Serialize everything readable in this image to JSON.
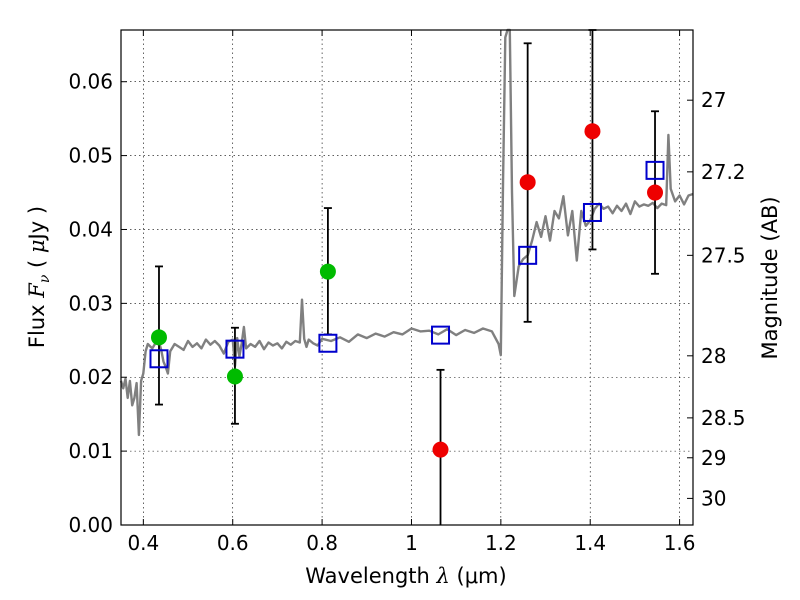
{
  "chart_data": {
    "type": "scatter",
    "title": "",
    "xlabel": "Wavelength  λ (μm)",
    "xlabel_parts": {
      "prefix": "Wavelength  ",
      "symbol": "λ",
      "unit": " (μm)"
    },
    "ylabel": "Flux  Fν  ( μJy )",
    "ylabel_parts": {
      "prefix": "Flux  ",
      "symbol": "F",
      "subscript": "ν",
      "open": "  ( ",
      "mu": "μ",
      "unit": "Jy )"
    },
    "y2label": "Magnitude (AB)",
    "xlim": [
      0.35,
      1.63
    ],
    "ylim": [
      0.0,
      0.067
    ],
    "grid": true,
    "x_ticks": [
      {
        "value": 0.4,
        "label": "0.4"
      },
      {
        "value": 0.6,
        "label": "0.6"
      },
      {
        "value": 0.8,
        "label": "0.8"
      },
      {
        "value": 1.0,
        "label": "1"
      },
      {
        "value": 1.2,
        "label": "1.2"
      },
      {
        "value": 1.4,
        "label": "1.4"
      },
      {
        "value": 1.6,
        "label": "1.6"
      }
    ],
    "y_ticks": [
      {
        "value": 0.0,
        "label": "0.00"
      },
      {
        "value": 0.01,
        "label": "0.01"
      },
      {
        "value": 0.02,
        "label": "0.02"
      },
      {
        "value": 0.03,
        "label": "0.03"
      },
      {
        "value": 0.04,
        "label": "0.04"
      },
      {
        "value": 0.05,
        "label": "0.05"
      },
      {
        "value": 0.06,
        "label": "0.06"
      }
    ],
    "y2_ticks": [
      {
        "flux": 0.0575,
        "label": "27"
      },
      {
        "flux": 0.0478,
        "label": "27.2"
      },
      {
        "flux": 0.0365,
        "label": "27.5"
      },
      {
        "flux": 0.0229,
        "label": "28"
      },
      {
        "flux": 0.0145,
        "label": "28.5"
      },
      {
        "flux": 0.0091,
        "label": "29"
      },
      {
        "flux": 0.0036,
        "label": "30"
      }
    ],
    "colors": {
      "sed": "#808080",
      "ground": "#00bb00",
      "hst": "#ee0000",
      "model": "#0000cc",
      "errorbar": "#000000"
    },
    "sed_model": {
      "x": [
        0.35,
        0.355,
        0.36,
        0.365,
        0.37,
        0.375,
        0.38,
        0.385,
        0.39,
        0.395,
        0.4,
        0.405,
        0.41,
        0.415,
        0.42,
        0.425,
        0.43,
        0.435,
        0.44,
        0.445,
        0.45,
        0.455,
        0.46,
        0.47,
        0.48,
        0.49,
        0.5,
        0.51,
        0.52,
        0.53,
        0.54,
        0.55,
        0.56,
        0.57,
        0.58,
        0.59,
        0.6,
        0.605,
        0.61,
        0.615,
        0.62,
        0.625,
        0.63,
        0.64,
        0.65,
        0.66,
        0.67,
        0.68,
        0.69,
        0.7,
        0.71,
        0.72,
        0.73,
        0.74,
        0.75,
        0.755,
        0.76,
        0.765,
        0.77,
        0.78,
        0.79,
        0.8,
        0.82,
        0.84,
        0.86,
        0.88,
        0.9,
        0.92,
        0.94,
        0.96,
        0.98,
        1.0,
        1.02,
        1.04,
        1.06,
        1.08,
        1.1,
        1.12,
        1.14,
        1.16,
        1.18,
        1.195,
        1.2,
        1.205,
        1.21,
        1.215,
        1.22,
        1.225,
        1.23,
        1.24,
        1.25,
        1.26,
        1.27,
        1.28,
        1.29,
        1.3,
        1.31,
        1.32,
        1.33,
        1.34,
        1.35,
        1.36,
        1.37,
        1.38,
        1.39,
        1.4,
        1.41,
        1.42,
        1.43,
        1.44,
        1.45,
        1.46,
        1.47,
        1.48,
        1.49,
        1.5,
        1.51,
        1.52,
        1.53,
        1.54,
        1.55,
        1.56,
        1.57,
        1.575,
        1.58,
        1.59,
        1.6,
        1.61,
        1.62,
        1.63
      ],
      "y": [
        0.0195,
        0.0185,
        0.0198,
        0.0172,
        0.0195,
        0.0162,
        0.0172,
        0.0192,
        0.0122,
        0.0195,
        0.0205,
        0.0235,
        0.0245,
        0.0242,
        0.0239,
        0.0244,
        0.0251,
        0.0248,
        0.0237,
        0.0221,
        0.0214,
        0.0205,
        0.0235,
        0.0245,
        0.0241,
        0.0237,
        0.0249,
        0.0241,
        0.0246,
        0.0239,
        0.0251,
        0.0244,
        0.0249,
        0.0243,
        0.0232,
        0.0248,
        0.0251,
        0.0215,
        0.0253,
        0.0228,
        0.0246,
        0.0268,
        0.0239,
        0.0245,
        0.0241,
        0.0249,
        0.0238,
        0.0247,
        0.0243,
        0.0246,
        0.0239,
        0.0248,
        0.0244,
        0.0249,
        0.0247,
        0.0305,
        0.0252,
        0.0241,
        0.0251,
        0.0246,
        0.0243,
        0.0252,
        0.0249,
        0.0254,
        0.0248,
        0.0258,
        0.0253,
        0.0259,
        0.0255,
        0.0261,
        0.0258,
        0.0266,
        0.0262,
        0.0263,
        0.0258,
        0.0265,
        0.0257,
        0.0264,
        0.026,
        0.0266,
        0.0262,
        0.0245,
        0.023,
        0.047,
        0.066,
        0.067,
        0.067,
        0.045,
        0.031,
        0.035,
        0.036,
        0.0365,
        0.0385,
        0.041,
        0.039,
        0.0418,
        0.0385,
        0.0425,
        0.0415,
        0.0445,
        0.0392,
        0.0425,
        0.0358,
        0.0425,
        0.0405,
        0.0412,
        0.0428,
        0.0435,
        0.0428,
        0.0431,
        0.0422,
        0.0432,
        0.0425,
        0.0435,
        0.0421,
        0.0438,
        0.0431,
        0.0434,
        0.0432,
        0.0436,
        0.0429,
        0.0435,
        0.0433,
        0.0528,
        0.0455,
        0.0438,
        0.0446,
        0.0434,
        0.0446,
        0.0448
      ]
    },
    "ground_points": [
      {
        "x": 0.435,
        "y": 0.0254,
        "err_low": 0.0163,
        "err_high": 0.035
      },
      {
        "x": 0.605,
        "y": 0.0201,
        "err_low": 0.0137,
        "err_high": 0.0267
      },
      {
        "x": 0.813,
        "y": 0.0343,
        "err_low": 0.0258,
        "err_high": 0.0429
      }
    ],
    "hst_points": [
      {
        "x": 1.065,
        "y": 0.0102,
        "err_low": 0.0,
        "err_high": 0.021
      },
      {
        "x": 1.26,
        "y": 0.0464,
        "err_low": 0.0275,
        "err_high": 0.0652
      },
      {
        "x": 1.405,
        "y": 0.0533,
        "err_low": 0.0373,
        "err_high": 0.067
      },
      {
        "x": 1.545,
        "y": 0.045,
        "err_low": 0.034,
        "err_high": 0.056
      }
    ],
    "model_photometry": [
      {
        "x": 0.435,
        "y": 0.0225
      },
      {
        "x": 0.605,
        "y": 0.0238
      },
      {
        "x": 0.813,
        "y": 0.0246
      },
      {
        "x": 1.065,
        "y": 0.0257
      },
      {
        "x": 1.26,
        "y": 0.0365
      },
      {
        "x": 1.405,
        "y": 0.0423
      },
      {
        "x": 1.545,
        "y": 0.048
      }
    ]
  }
}
